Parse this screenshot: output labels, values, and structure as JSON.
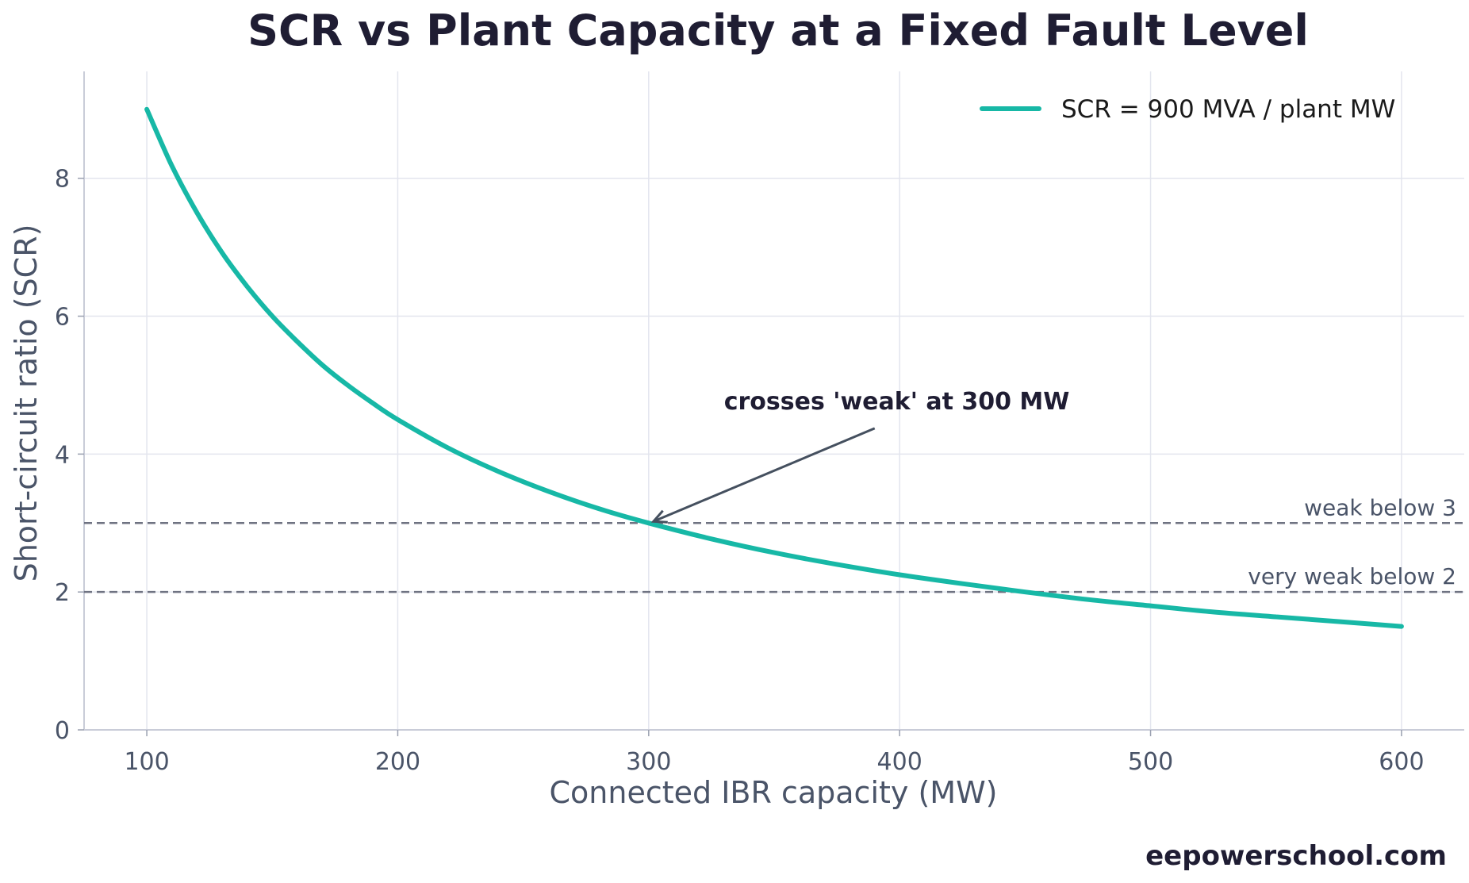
{
  "chart_data": {
    "type": "line",
    "title": "SCR vs Plant Capacity at a Fixed Fault Level",
    "xlabel": "Connected IBR capacity (MW)",
    "ylabel": "Short-circuit ratio (SCR)",
    "xlim": [
      75,
      625
    ],
    "ylim": [
      0,
      9.55
    ],
    "x_ticks": [
      100,
      200,
      300,
      400,
      500,
      600
    ],
    "y_ticks": [
      0,
      2,
      4,
      6,
      8
    ],
    "grid": true,
    "legend_position": "top-right",
    "series": [
      {
        "name": "SCR = 900 MVA / plant MW",
        "color": "#17b8a6",
        "x": [
          100,
          110,
          120,
          130,
          140,
          150,
          160,
          170,
          180,
          190,
          200,
          220,
          240,
          260,
          280,
          300,
          325,
          350,
          375,
          400,
          425,
          450,
          475,
          500,
          525,
          550,
          575,
          600
        ],
        "y": [
          9.0,
          8.18,
          7.5,
          6.92,
          6.43,
          6.0,
          5.63,
          5.29,
          5.0,
          4.74,
          4.5,
          4.09,
          3.75,
          3.46,
          3.21,
          3.0,
          2.77,
          2.57,
          2.4,
          2.25,
          2.12,
          2.0,
          1.89,
          1.8,
          1.71,
          1.64,
          1.57,
          1.5
        ]
      }
    ],
    "reference_lines": [
      {
        "y": 3,
        "label": "weak below 3",
        "color": "#6f7382"
      },
      {
        "y": 2,
        "label": "very weak below 2",
        "color": "#6f7382"
      }
    ],
    "annotation": {
      "text": "crosses 'weak' at 300 MW",
      "point": [
        300,
        3.0
      ],
      "text_anchor_data": [
        330,
        4.65
      ]
    }
  },
  "footer": {
    "watermark": "eepowerschool.com"
  }
}
